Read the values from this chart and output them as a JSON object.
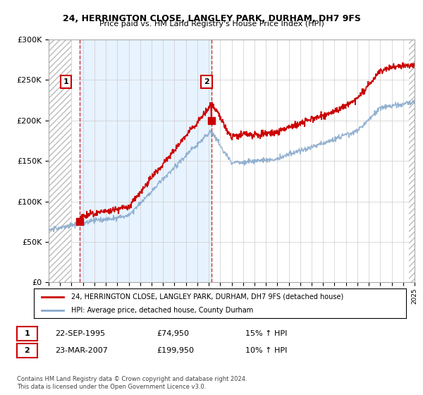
{
  "title": "24, HERRINGTON CLOSE, LANGLEY PARK, DURHAM, DH7 9FS",
  "subtitle": "Price paid vs. HM Land Registry's House Price Index (HPI)",
  "property_label": "24, HERRINGTON CLOSE, LANGLEY PARK, DURHAM, DH7 9FS (detached house)",
  "hpi_label": "HPI: Average price, detached house, County Durham",
  "sale1_date": "22-SEP-1995",
  "sale1_price": 74950,
  "sale1_hpi": "15% ↑ HPI",
  "sale2_date": "23-MAR-2007",
  "sale2_price": 199950,
  "sale2_hpi": "10% ↑ HPI",
  "copyright": "Contains HM Land Registry data © Crown copyright and database right 2024.\nThis data is licensed under the Open Government Licence v3.0.",
  "property_color": "#cc0000",
  "hpi_color": "#88aacc",
  "ylim": [
    0,
    300000
  ],
  "yticks": [
    0,
    50000,
    100000,
    150000,
    200000,
    250000,
    300000
  ],
  "xlim_start": 1993,
  "xlim_end": 2025,
  "sale1_t": 1995.73,
  "sale2_t": 2007.23,
  "hatch_left_end": 1995.0,
  "hatch_right_start": 2024.5
}
